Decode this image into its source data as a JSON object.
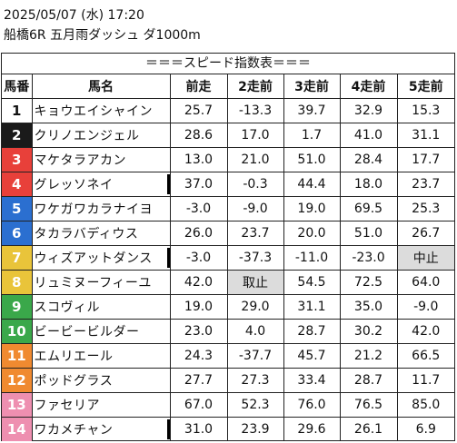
{
  "header": {
    "date_line": "2025/05/07 (水) 17:20",
    "race_line": "船橋6R 五月雨ダッシュ ダ1000m"
  },
  "section_title": "＝＝＝スピード指数表＝＝＝",
  "columns": [
    "馬番",
    "馬名",
    "前走",
    "2走前",
    "3走前",
    "4走前",
    "5走前"
  ],
  "rows": [
    {
      "no": "1",
      "name": "キョウエイシャイン",
      "v": [
        "25.7",
        "-13.3",
        "39.7",
        "32.9",
        "15.3"
      ],
      "color": "c1",
      "marked": false,
      "gray": []
    },
    {
      "no": "2",
      "name": "クリノエンジェル",
      "v": [
        "28.6",
        "17.0",
        "1.7",
        "41.0",
        "31.1"
      ],
      "color": "c2",
      "marked": false,
      "gray": []
    },
    {
      "no": "3",
      "name": "マケタラアカン",
      "v": [
        "13.0",
        "21.0",
        "51.0",
        "28.4",
        "17.7"
      ],
      "color": "c3",
      "marked": false,
      "gray": []
    },
    {
      "no": "4",
      "name": "グレッソネイ",
      "v": [
        "37.0",
        "-0.3",
        "44.4",
        "18.0",
        "23.7"
      ],
      "color": "c3",
      "marked": true,
      "gray": []
    },
    {
      "no": "5",
      "name": "ワケガワカラナイヨ",
      "v": [
        "-3.0",
        "-9.0",
        "19.0",
        "69.5",
        "25.3"
      ],
      "color": "c4",
      "marked": false,
      "gray": []
    },
    {
      "no": "6",
      "name": "タカラバディウス",
      "v": [
        "26.0",
        "23.7",
        "20.0",
        "51.0",
        "26.7"
      ],
      "color": "c4",
      "marked": false,
      "gray": []
    },
    {
      "no": "7",
      "name": "ウィズアットダンス",
      "v": [
        "-3.0",
        "-37.3",
        "-11.0",
        "-23.0",
        "中止"
      ],
      "color": "c5",
      "marked": true,
      "gray": [
        4
      ]
    },
    {
      "no": "8",
      "name": "リュミヌーフィーユ",
      "v": [
        "42.0",
        "取止",
        "54.5",
        "72.5",
        "64.0"
      ],
      "color": "c5",
      "marked": false,
      "gray": [
        1
      ]
    },
    {
      "no": "9",
      "name": "スコヴィル",
      "v": [
        "19.0",
        "29.0",
        "31.1",
        "35.0",
        "-9.0"
      ],
      "color": "c6",
      "marked": false,
      "gray": []
    },
    {
      "no": "10",
      "name": "ビービービルダー",
      "v": [
        "23.0",
        "4.0",
        "28.7",
        "30.2",
        "42.0"
      ],
      "color": "c6",
      "marked": false,
      "gray": []
    },
    {
      "no": "11",
      "name": "エムリエール",
      "v": [
        "24.3",
        "-37.7",
        "45.7",
        "21.2",
        "66.5"
      ],
      "color": "c7",
      "marked": false,
      "gray": []
    },
    {
      "no": "12",
      "name": "ポッドグラス",
      "v": [
        "27.7",
        "27.3",
        "33.4",
        "28.7",
        "11.7"
      ],
      "color": "c7",
      "marked": false,
      "gray": []
    },
    {
      "no": "13",
      "name": "ファセリア",
      "v": [
        "67.0",
        "52.3",
        "76.0",
        "76.5",
        "85.0"
      ],
      "color": "c8",
      "marked": false,
      "gray": []
    },
    {
      "no": "14",
      "name": "ワカメチャン",
      "v": [
        "31.0",
        "23.9",
        "29.6",
        "26.1",
        "6.9"
      ],
      "color": "c8",
      "marked": true,
      "gray": []
    }
  ]
}
